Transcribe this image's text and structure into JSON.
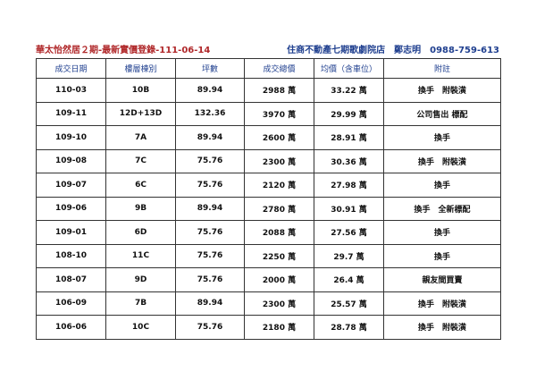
{
  "header": {
    "title": "華太怡然居２期-最新實價登錄-111-06-14",
    "agency": "住商不動產七期歌劇院店",
    "agent": "鄭志明",
    "phone": "0988-759-613"
  },
  "table": {
    "columns": [
      "成交日期",
      "樓層棟別",
      "坪數",
      "成交總價",
      "均價（含車位）",
      "附註"
    ],
    "rows": [
      [
        "110-03",
        "10B",
        "89.94",
        "2988 萬",
        "33.22 萬",
        "換手　附裝潢"
      ],
      [
        "109-11",
        "12D+13D",
        "132.36",
        "3970 萬",
        "29.99 萬",
        "公司售出 標配"
      ],
      [
        "109-10",
        "7A",
        "89.94",
        "2600 萬",
        "28.91 萬",
        "換手"
      ],
      [
        "109-08",
        "7C",
        "75.76",
        "2300 萬",
        "30.36 萬",
        "換手　附裝潢"
      ],
      [
        "109-07",
        "6C",
        "75.76",
        "2120 萬",
        "27.98 萬",
        "換手"
      ],
      [
        "109-06",
        "9B",
        "89.94",
        "2780 萬",
        "30.91 萬",
        "換手　全新標配"
      ],
      [
        "109-01",
        "6D",
        "75.76",
        "2088 萬",
        "27.56 萬",
        "換手"
      ],
      [
        "108-10",
        "11C",
        "75.76",
        "2250 萬",
        "29.7 萬",
        "換手"
      ],
      [
        "108-07",
        "9D",
        "75.76",
        "2000 萬",
        "26.4 萬",
        "親友間買賣"
      ],
      [
        "106-09",
        "7B",
        "89.94",
        "2300 萬",
        "25.57 萬",
        "換手　附裝潢"
      ],
      [
        "106-06",
        "10C",
        "75.76",
        "2180 萬",
        "28.78 萬",
        "換手　附裝潢"
      ]
    ]
  }
}
